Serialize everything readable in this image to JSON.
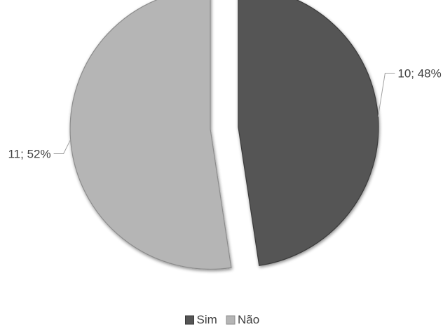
{
  "chart_data": {
    "type": "pie",
    "title": "",
    "slices": [
      {
        "name": "Sim",
        "value": 10,
        "percent": 48,
        "label": "10; 48%",
        "color": "#555555"
      },
      {
        "name": "Não",
        "value": 11,
        "percent": 52,
        "label": "11; 52%",
        "color": "#b5b5b5"
      }
    ],
    "legend": {
      "position": "bottom",
      "entries": [
        "Sim",
        "Não"
      ]
    },
    "exploded": true
  }
}
